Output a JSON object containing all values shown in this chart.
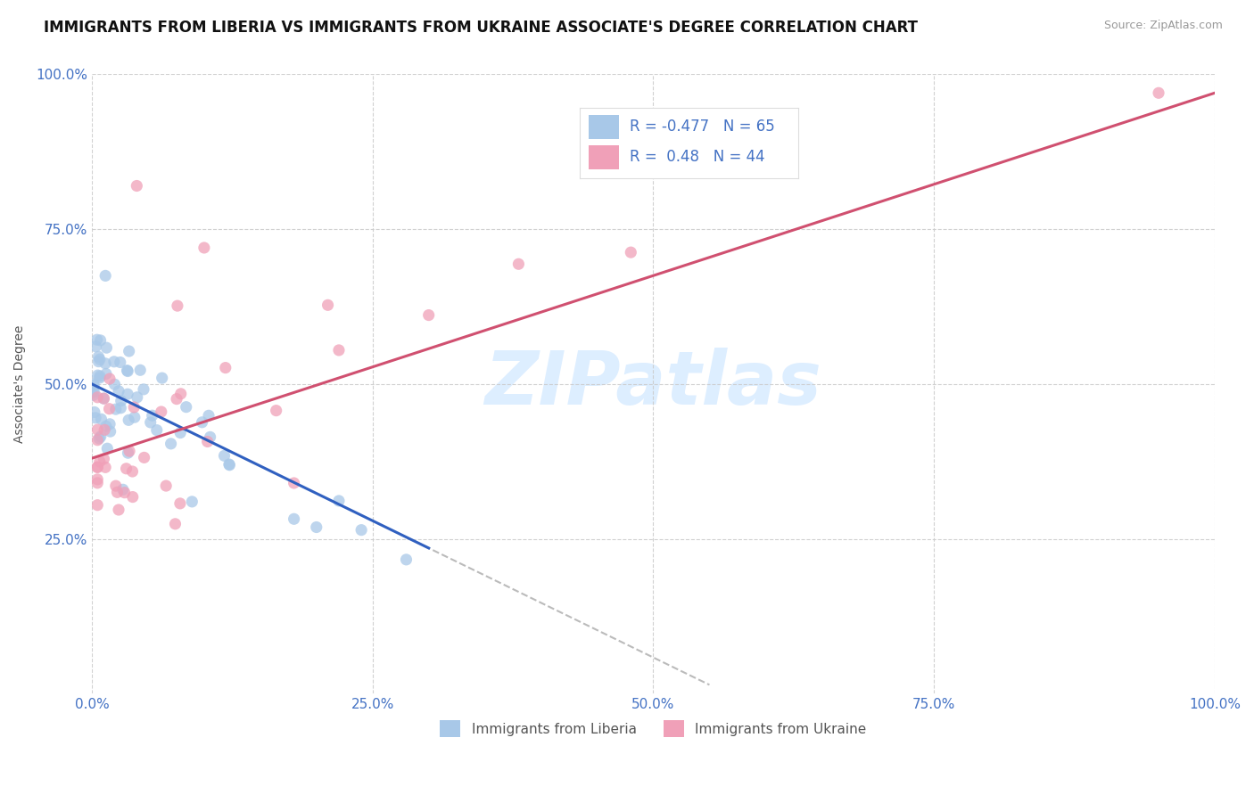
{
  "title": "IMMIGRANTS FROM LIBERIA VS IMMIGRANTS FROM UKRAINE ASSOCIATE'S DEGREE CORRELATION CHART",
  "source": "Source: ZipAtlas.com",
  "ylabel": "Associate's Degree",
  "watermark": "ZIPatlas",
  "liberia_color": "#a8c8e8",
  "ukraine_color": "#f0a0b8",
  "liberia_line_color": "#3060c0",
  "ukraine_line_color": "#d05070",
  "liberia_R": -0.477,
  "liberia_N": 65,
  "ukraine_R": 0.48,
  "ukraine_N": 44,
  "axis_color": "#4472c4",
  "grid_color": "#cccccc",
  "legend_text_color": "#4472c4",
  "xlim": [
    0.0,
    1.0
  ],
  "ylim": [
    0.0,
    1.0
  ],
  "xticks": [
    0.0,
    0.25,
    0.5,
    0.75,
    1.0
  ],
  "xtick_labels": [
    "0.0%",
    "25.0%",
    "50.0%",
    "75.0%",
    "100.0%"
  ],
  "yticks": [
    0.25,
    0.5,
    0.75,
    1.0
  ],
  "ytick_labels": [
    "25.0%",
    "50.0%",
    "75.0%",
    "100.0%"
  ],
  "title_fontsize": 12,
  "axis_label_fontsize": 10,
  "tick_fontsize": 11,
  "watermark_fontsize": 60,
  "watermark_color": "#ddeeff",
  "background_color": "#ffffff",
  "liberia_line_x0": 0.0,
  "liberia_line_y0": 0.5,
  "liberia_line_x1": 0.3,
  "liberia_line_y1": 0.235,
  "ukraine_line_x0": 0.0,
  "ukraine_line_y0": 0.38,
  "ukraine_line_x1": 1.0,
  "ukraine_line_y1": 0.97
}
